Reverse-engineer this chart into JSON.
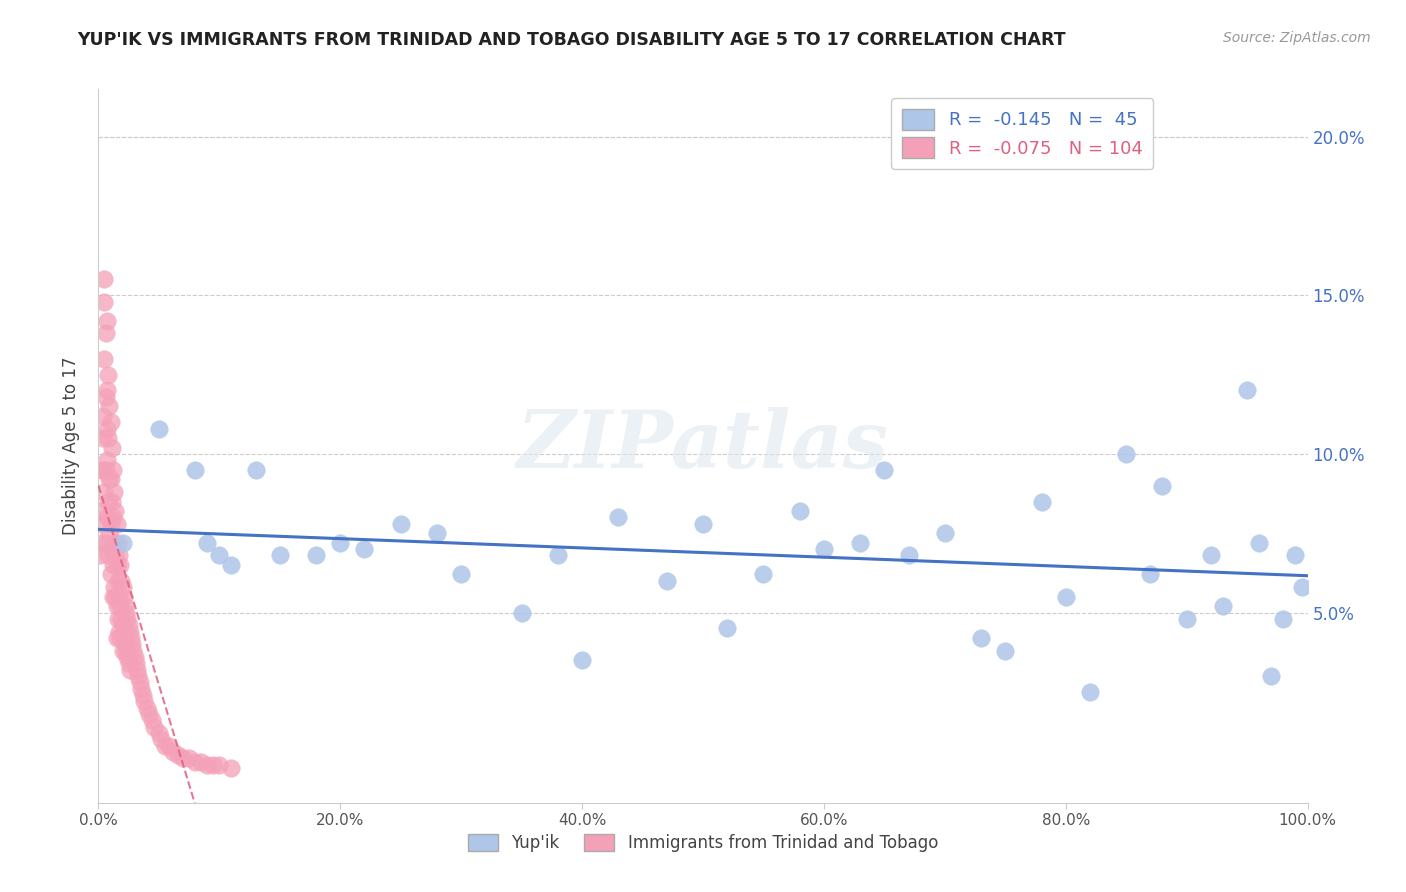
{
  "title": "YUP'IK VS IMMIGRANTS FROM TRINIDAD AND TOBAGO DISABILITY AGE 5 TO 17 CORRELATION CHART",
  "source": "Source: ZipAtlas.com",
  "ylabel": "Disability Age 5 to 17",
  "xlim": [
    0.0,
    1.0
  ],
  "ylim": [
    -0.01,
    0.215
  ],
  "ytick_positions": [
    0.05,
    0.1,
    0.15,
    0.2
  ],
  "ytick_labels": [
    "5.0%",
    "10.0%",
    "15.0%",
    "20.0%"
  ],
  "xtick_positions": [
    0.0,
    0.2,
    0.4,
    0.6,
    0.8,
    1.0
  ],
  "xtick_labels": [
    "0.0%",
    "20.0%",
    "40.0%",
    "60.0%",
    "80.0%",
    "100.0%"
  ],
  "series1_name": "Yup'ik",
  "series1_color": "#aec6e8",
  "series1_edge_color": "#aec6e8",
  "series1_line_color": "#4472c4",
  "series1_R": -0.145,
  "series1_N": 45,
  "series2_name": "Immigrants from Trinidad and Tobago",
  "series2_color": "#f4a0b8",
  "series2_edge_color": "#f4a0b8",
  "series2_line_color": "#e06080",
  "series2_R": -0.075,
  "series2_N": 104,
  "watermark": "ZIPatlas",
  "bg_color": "#ffffff",
  "grid_color": "#cccccc",
  "yaxis_label_color": "#4472c4",
  "title_color": "#222222",
  "source_color": "#999999",
  "legend_edge_color": "#cccccc",
  "series1_x": [
    0.02,
    0.05,
    0.08,
    0.09,
    0.1,
    0.11,
    0.13,
    0.15,
    0.18,
    0.2,
    0.22,
    0.25,
    0.28,
    0.3,
    0.35,
    0.38,
    0.4,
    0.43,
    0.47,
    0.5,
    0.52,
    0.55,
    0.58,
    0.6,
    0.63,
    0.65,
    0.67,
    0.7,
    0.73,
    0.75,
    0.78,
    0.8,
    0.82,
    0.85,
    0.87,
    0.88,
    0.9,
    0.92,
    0.93,
    0.95,
    0.96,
    0.97,
    0.98,
    0.99,
    0.995
  ],
  "series1_y": [
    0.072,
    0.108,
    0.095,
    0.072,
    0.068,
    0.065,
    0.095,
    0.068,
    0.068,
    0.072,
    0.07,
    0.078,
    0.075,
    0.062,
    0.05,
    0.068,
    0.035,
    0.08,
    0.06,
    0.078,
    0.045,
    0.062,
    0.082,
    0.07,
    0.072,
    0.095,
    0.068,
    0.075,
    0.042,
    0.038,
    0.085,
    0.055,
    0.025,
    0.1,
    0.062,
    0.09,
    0.048,
    0.068,
    0.052,
    0.12,
    0.072,
    0.03,
    0.048,
    0.068,
    0.058
  ],
  "series2_x": [
    0.001,
    0.002,
    0.002,
    0.003,
    0.003,
    0.004,
    0.004,
    0.004,
    0.005,
    0.005,
    0.005,
    0.005,
    0.006,
    0.006,
    0.006,
    0.006,
    0.007,
    0.007,
    0.007,
    0.007,
    0.007,
    0.008,
    0.008,
    0.008,
    0.008,
    0.009,
    0.009,
    0.009,
    0.01,
    0.01,
    0.01,
    0.01,
    0.011,
    0.011,
    0.011,
    0.012,
    0.012,
    0.012,
    0.012,
    0.013,
    0.013,
    0.013,
    0.014,
    0.014,
    0.014,
    0.015,
    0.015,
    0.015,
    0.015,
    0.016,
    0.016,
    0.016,
    0.017,
    0.017,
    0.017,
    0.018,
    0.018,
    0.018,
    0.019,
    0.019,
    0.02,
    0.02,
    0.02,
    0.021,
    0.021,
    0.022,
    0.022,
    0.023,
    0.023,
    0.024,
    0.024,
    0.025,
    0.025,
    0.026,
    0.026,
    0.027,
    0.028,
    0.029,
    0.03,
    0.031,
    0.032,
    0.033,
    0.034,
    0.035,
    0.037,
    0.038,
    0.04,
    0.042,
    0.044,
    0.046,
    0.05,
    0.052,
    0.055,
    0.058,
    0.062,
    0.066,
    0.07,
    0.075,
    0.08,
    0.085,
    0.09,
    0.095,
    0.1,
    0.11
  ],
  "series2_y": [
    0.068,
    0.082,
    0.072,
    0.095,
    0.078,
    0.112,
    0.105,
    0.095,
    0.155,
    0.148,
    0.13,
    0.088,
    0.138,
    0.118,
    0.095,
    0.072,
    0.142,
    0.12,
    0.098,
    0.108,
    0.08,
    0.125,
    0.105,
    0.085,
    0.068,
    0.115,
    0.092,
    0.075,
    0.11,
    0.092,
    0.078,
    0.062,
    0.102,
    0.085,
    0.07,
    0.095,
    0.08,
    0.065,
    0.055,
    0.088,
    0.072,
    0.058,
    0.082,
    0.068,
    0.055,
    0.078,
    0.065,
    0.052,
    0.042,
    0.072,
    0.06,
    0.048,
    0.068,
    0.055,
    0.044,
    0.065,
    0.052,
    0.042,
    0.06,
    0.048,
    0.058,
    0.046,
    0.038,
    0.055,
    0.044,
    0.052,
    0.04,
    0.05,
    0.038,
    0.048,
    0.036,
    0.046,
    0.034,
    0.044,
    0.032,
    0.042,
    0.04,
    0.038,
    0.036,
    0.034,
    0.032,
    0.03,
    0.028,
    0.026,
    0.024,
    0.022,
    0.02,
    0.018,
    0.016,
    0.014,
    0.012,
    0.01,
    0.008,
    0.008,
    0.006,
    0.005,
    0.004,
    0.004,
    0.003,
    0.003,
    0.002,
    0.002,
    0.002,
    0.001
  ]
}
